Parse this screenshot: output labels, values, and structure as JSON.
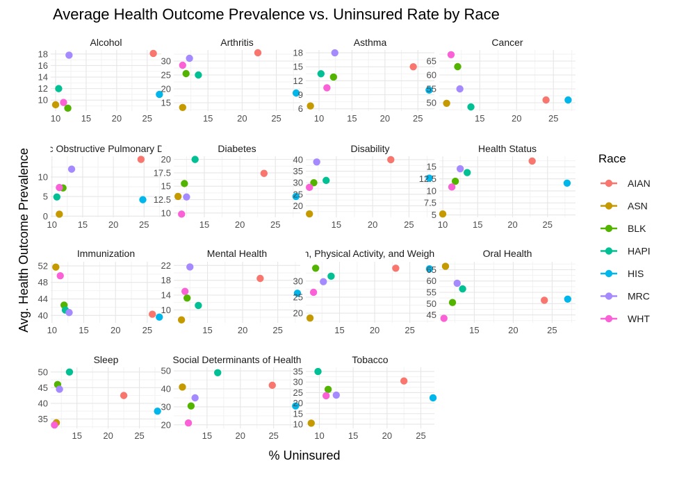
{
  "chart_data": {
    "type": "scatter",
    "title": "Average Health Outcome Prevalence vs. Uninsured Rate by Race",
    "xlabel": "% Uninsured",
    "ylabel": "Avg. Health Outcome Prevalence",
    "legend_title": "Race",
    "legend_position": "right",
    "grid": true,
    "races": [
      "AIAN",
      "ASN",
      "BLK",
      "HAPI",
      "HIS",
      "MRC",
      "WHT"
    ],
    "colors": {
      "AIAN": "#F8766D",
      "ASN": "#C49A00",
      "BLK": "#53B400",
      "HAPI": "#00C094",
      "HIS": "#00B6EB",
      "MRC": "#A58AFF",
      "WHT": "#FB61D7"
    },
    "panels": [
      {
        "label": "Alcohol",
        "xlim": [
          9.2,
          27.3
        ],
        "ylim": [
          8.1,
          18.7
        ],
        "xticks": [
          10,
          15,
          20,
          25
        ],
        "yticks": [
          10,
          12,
          14,
          16,
          18
        ],
        "points": {
          "AIAN": [
            26,
            18.1
          ],
          "ASN": [
            10,
            9.2
          ],
          "BLK": [
            12,
            8.6
          ],
          "HAPI": [
            10.5,
            12
          ],
          "HIS": [
            27,
            11
          ],
          "MRC": [
            12.2,
            17.8
          ],
          "WHT": [
            11.3,
            9.6
          ]
        }
      },
      {
        "label": "Arthritis",
        "xlim": [
          10,
          28.5
        ],
        "ylim": [
          12,
          34
        ],
        "xticks": [
          15,
          20,
          25
        ],
        "yticks": [
          15,
          20,
          25,
          30
        ],
        "points": {
          "AIAN": [
            22.3,
            33
          ],
          "ASN": [
            11.3,
            13.3
          ],
          "BLK": [
            11.8,
            25.5
          ],
          "HAPI": [
            13.6,
            25
          ],
          "HIS": [
            27.9,
            18.5
          ],
          "MRC": [
            12.3,
            31
          ],
          "WHT": [
            11.3,
            28.5
          ]
        }
      },
      {
        "label": "Asthma",
        "xlim": [
          8,
          27.5
        ],
        "ylim": [
          5.5,
          18.6
        ],
        "xticks": [
          10,
          15,
          20,
          25
        ],
        "yticks": [
          6,
          9,
          12,
          15,
          18
        ],
        "points": {
          "AIAN": [
            24.3,
            15
          ],
          "ASN": [
            8.7,
            6.6
          ],
          "BLK": [
            12.2,
            12.8
          ],
          "HAPI": [
            10.3,
            13.5
          ],
          "HIS": [
            26.7,
            10
          ],
          "MRC": [
            12.4,
            18
          ],
          "WHT": [
            11.2,
            10.5
          ]
        }
      },
      {
        "label": "Cancer",
        "xlim": [
          9.5,
          28
        ],
        "ylim": [
          47,
          69
        ],
        "xticks": [
          15,
          20,
          25
        ],
        "yticks": [
          50,
          55,
          60,
          65
        ],
        "points": {
          "AIAN": [
            24,
            51
          ],
          "ASN": [
            10.5,
            49.8
          ],
          "BLK": [
            12,
            63
          ],
          "HAPI": [
            13.8,
            48.5
          ],
          "HIS": [
            27,
            51
          ],
          "MRC": [
            12.3,
            55
          ],
          "WHT": [
            11.1,
            67.3
          ]
        }
      },
      {
        "label": "Chronic Obstructive Pulmonary Disease",
        "xlim": [
          9.8,
          27.8
        ],
        "ylim": [
          -0.3,
          15.3
        ],
        "xticks": [
          10,
          15,
          20,
          25
        ],
        "yticks": [
          0,
          5,
          10
        ],
        "points": {
          "AIAN": [
            24.5,
            14.5
          ],
          "ASN": [
            11.2,
            0.5
          ],
          "BLK": [
            11.8,
            7.2
          ],
          "HAPI": [
            10.8,
            4.9
          ],
          "HIS": [
            24.8,
            4.2
          ],
          "MRC": [
            13.2,
            12
          ],
          "WHT": [
            11.2,
            7.3
          ]
        }
      },
      {
        "label": "Diabetes",
        "xlim": [
          10.7,
          28.5
        ],
        "ylim": [
          9.2,
          20.6
        ],
        "xticks": [
          15,
          20,
          25
        ],
        "yticks": [
          10,
          12.5,
          15,
          17.5,
          20
        ],
        "points": {
          "AIAN": [
            23.4,
            17.4
          ],
          "ASN": [
            11.3,
            13.1
          ],
          "BLK": [
            12.2,
            15.5
          ],
          "HAPI": [
            13.7,
            20
          ],
          "HIS": [
            27.9,
            13.1
          ],
          "MRC": [
            12.5,
            13
          ],
          "WHT": [
            11.8,
            9.8
          ]
        }
      },
      {
        "label": "Disability",
        "xlim": [
          10.8,
          28.5
        ],
        "ylim": [
          15,
          41.5
        ],
        "xticks": [
          15,
          20,
          25
        ],
        "yticks": [
          20,
          25,
          30,
          35,
          40
        ],
        "points": {
          "AIAN": [
            22.5,
            40
          ],
          "ASN": [
            11.3,
            16.5
          ],
          "BLK": [
            11.9,
            30
          ],
          "HAPI": [
            13.6,
            31
          ],
          "HIS": [
            27.8,
            32
          ],
          "MRC": [
            12.3,
            39
          ],
          "WHT": [
            11.3,
            28
          ]
        }
      },
      {
        "label": "Health Status",
        "xlim": [
          9.5,
          29
        ],
        "ylim": [
          4.5,
          17.2
        ],
        "xticks": [
          10,
          15,
          20,
          25
        ],
        "yticks": [
          5,
          7.5,
          10,
          12.5,
          15
        ],
        "points": {
          "AIAN": [
            22.8,
            16.2
          ],
          "ASN": [
            10,
            5.2
          ],
          "BLK": [
            11.8,
            12
          ],
          "HAPI": [
            13.5,
            13.8
          ],
          "HIS": [
            27.8,
            11.6
          ],
          "MRC": [
            12.5,
            14.6
          ],
          "WHT": [
            11.3,
            10.8
          ]
        }
      },
      {
        "label": "Immunization",
        "xlim": [
          9.8,
          27.2
        ],
        "ylim": [
          38.2,
          53
        ],
        "xticks": [
          10,
          15,
          20,
          25
        ],
        "yticks": [
          40,
          44,
          48,
          52
        ],
        "points": {
          "AIAN": [
            25.8,
            40.3
          ],
          "ASN": [
            10.6,
            51.7
          ],
          "BLK": [
            11.9,
            42.5
          ],
          "HAPI": [
            12.1,
            41.3
          ],
          "HIS": [
            26.9,
            39.6
          ],
          "MRC": [
            12.7,
            40.7
          ],
          "WHT": [
            11.3,
            49.6
          ]
        }
      },
      {
        "label": "Mental Health",
        "xlim": [
          10.2,
          28.2
        ],
        "ylim": [
          6.5,
          23
        ],
        "xticks": [
          15,
          20,
          25
        ],
        "yticks": [
          10,
          14,
          18,
          22
        ],
        "points": {
          "AIAN": [
            22.5,
            18.5
          ],
          "ASN": [
            11.3,
            7.3
          ],
          "BLK": [
            12.1,
            13.2
          ],
          "HAPI": [
            13.7,
            11.2
          ],
          "HIS": [
            27.8,
            14.5
          ],
          "MRC": [
            12.5,
            21.6
          ],
          "WHT": [
            11.8,
            15
          ]
        }
      },
      {
        "label": "Nutrition, Physical Activity, and Weight Status",
        "xlim": [
          10.2,
          28.5
        ],
        "ylim": [
          17,
          36
        ],
        "xticks": [
          15,
          20,
          25
        ],
        "yticks": [
          20,
          25,
          30
        ],
        "points": {
          "AIAN": [
            23,
            34
          ],
          "ASN": [
            10.8,
            18.5
          ],
          "BLK": [
            11.6,
            34
          ],
          "HAPI": [
            13.8,
            31.5
          ],
          "HIS": [
            27.8,
            33.8
          ],
          "MRC": [
            12.7,
            29.8
          ],
          "WHT": [
            11.3,
            26.5
          ]
        }
      },
      {
        "label": "Oral Health",
        "xlim": [
          10.5,
          28
        ],
        "ylim": [
          41.5,
          68.5
        ],
        "xticks": [
          15,
          20,
          25
        ],
        "yticks": [
          45,
          50,
          55,
          60,
          65
        ],
        "points": {
          "AIAN": [
            24,
            51.5
          ],
          "ASN": [
            11.3,
            66.5
          ],
          "BLK": [
            12.2,
            50.5
          ],
          "HAPI": [
            13.5,
            56.5
          ],
          "HIS": [
            27,
            52
          ],
          "MRC": [
            12.8,
            59
          ],
          "WHT": [
            11.1,
            43.5
          ]
        }
      },
      {
        "label": "Sleep",
        "xlim": [
          10.8,
          28.5
        ],
        "ylim": [
          32,
          51.5
        ],
        "xticks": [
          15,
          20,
          25
        ],
        "yticks": [
          35,
          40,
          45,
          50
        ],
        "points": {
          "AIAN": [
            22.5,
            42.5
          ],
          "ASN": [
            11.7,
            33.8
          ],
          "BLK": [
            11.9,
            46
          ],
          "HAPI": [
            13.8,
            50
          ],
          "HIS": [
            27.9,
            37.5
          ],
          "MRC": [
            12.2,
            44.5
          ],
          "WHT": [
            11.4,
            33.1
          ]
        }
      },
      {
        "label": "Social Determinants of Health",
        "xlim": [
          10,
          29
        ],
        "ylim": [
          18,
          52
        ],
        "xticks": [
          15,
          20,
          25
        ],
        "yticks": [
          20,
          30,
          40,
          50
        ],
        "points": {
          "AIAN": [
            24.8,
            42
          ],
          "ASN": [
            11.3,
            41
          ],
          "BLK": [
            12.6,
            30.5
          ],
          "HAPI": [
            16.6,
            49
          ],
          "HIS": [
            28.3,
            30.5
          ],
          "MRC": [
            13.2,
            35
          ],
          "WHT": [
            12.2,
            21
          ]
        }
      },
      {
        "label": "Tobacco",
        "xlim": [
          8,
          27
        ],
        "ylim": [
          8,
          37
        ],
        "xticks": [
          10,
          15,
          20,
          25
        ],
        "yticks": [
          10,
          15,
          20,
          25,
          30,
          35
        ],
        "points": {
          "AIAN": [
            22.5,
            30.5
          ],
          "ASN": [
            8.8,
            10.5
          ],
          "BLK": [
            11.3,
            26.5
          ],
          "HAPI": [
            9.8,
            35
          ],
          "HIS": [
            26.8,
            22.5
          ],
          "MRC": [
            12.5,
            23.8
          ],
          "WHT": [
            11,
            23.5
          ]
        }
      }
    ]
  }
}
